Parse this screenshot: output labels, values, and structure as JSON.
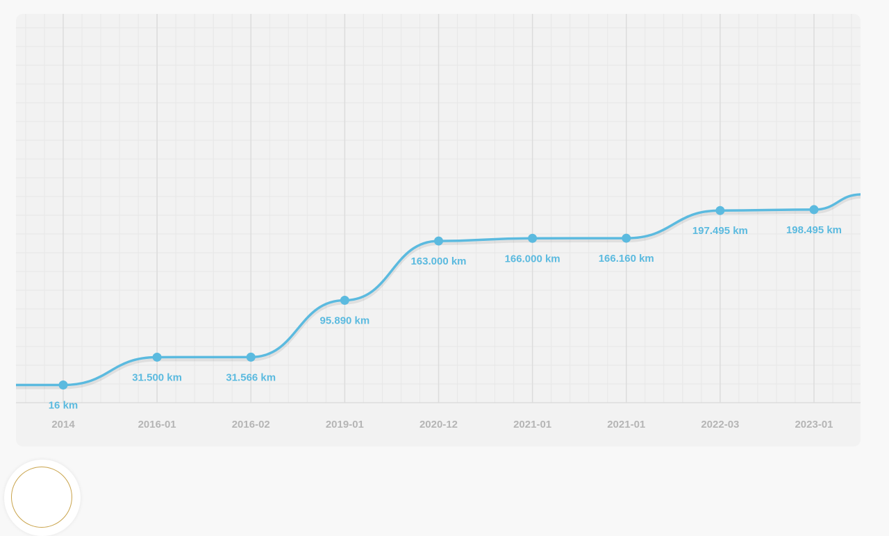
{
  "colors": {
    "line": "#5bbadf",
    "label": "#5bbadf",
    "tick_label": "#b5b5b5",
    "grid_major": "#dcdcdc",
    "grid_minor": "#e7e7e7",
    "card": "#f2f2f2",
    "badge_ring": "#c9a34a"
  },
  "chart_data": {
    "type": "line",
    "categories": [
      "2014",
      "2016-01",
      "2016-02",
      "2019-01",
      "2020-12",
      "2021-01",
      "2021-01",
      "2022-03",
      "2023-01"
    ],
    "series": [
      {
        "values": [
          16,
          31500,
          31566,
          95890,
          163000,
          166000,
          166160,
          197495,
          198495
        ],
        "labels": [
          "16 km",
          "31.500 km",
          "31.566 km",
          "95.890 km",
          "163.000 km",
          "166.000 km",
          "166.160 km",
          "197.495 km",
          "198.495 km"
        ]
      }
    ],
    "unit": "km",
    "ylim": [
      -20000,
      420000
    ],
    "grid": true,
    "legend": "none"
  }
}
